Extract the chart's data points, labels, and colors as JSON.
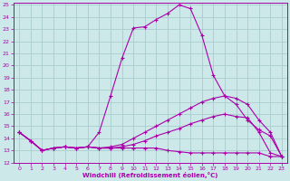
{
  "xlabel": "Windchill (Refroidissement éolien,°C)",
  "bg_color": "#cce8e8",
  "line_color": "#aa00aa",
  "grid_color": "#aacccc",
  "xlim": [
    -0.5,
    23.5
  ],
  "ylim": [
    12,
    25.2
  ],
  "xticks": [
    0,
    1,
    2,
    3,
    4,
    5,
    6,
    7,
    8,
    9,
    10,
    11,
    12,
    13,
    14,
    15,
    16,
    17,
    18,
    19,
    20,
    21,
    22,
    23
  ],
  "yticks": [
    12,
    13,
    14,
    15,
    16,
    17,
    18,
    19,
    20,
    21,
    22,
    23,
    24,
    25
  ],
  "line1_x": [
    0,
    1,
    2,
    3,
    4,
    5,
    6,
    7,
    8,
    9,
    10,
    11,
    12,
    13,
    14,
    15,
    16,
    17,
    18,
    19,
    20,
    21,
    22,
    23
  ],
  "line1_y": [
    14.5,
    13.8,
    13.0,
    13.2,
    13.3,
    13.2,
    13.3,
    14.5,
    17.5,
    20.6,
    23.1,
    23.2,
    23.8,
    24.3,
    25.0,
    24.7,
    22.5,
    19.2,
    17.5,
    16.8,
    15.5,
    14.7,
    14.2,
    12.5
  ],
  "line2_x": [
    0,
    1,
    2,
    3,
    4,
    5,
    6,
    7,
    8,
    9,
    10,
    11,
    12,
    13,
    14,
    15,
    16,
    17,
    18,
    19,
    20,
    21,
    22,
    23
  ],
  "line2_y": [
    14.5,
    13.8,
    13.0,
    13.2,
    13.3,
    13.2,
    13.3,
    13.2,
    13.3,
    13.5,
    14.0,
    14.5,
    15.0,
    15.5,
    16.0,
    16.5,
    17.0,
    17.3,
    17.5,
    17.3,
    16.8,
    15.5,
    14.5,
    12.5
  ],
  "line3_x": [
    0,
    1,
    2,
    3,
    4,
    5,
    6,
    7,
    8,
    9,
    10,
    11,
    12,
    13,
    14,
    15,
    16,
    17,
    18,
    19,
    20,
    21,
    22,
    23
  ],
  "line3_y": [
    14.5,
    13.8,
    13.0,
    13.2,
    13.3,
    13.2,
    13.3,
    13.2,
    13.2,
    13.3,
    13.5,
    13.8,
    14.2,
    14.5,
    14.8,
    15.2,
    15.5,
    15.8,
    16.0,
    15.8,
    15.7,
    14.5,
    12.8,
    12.5
  ],
  "line4_x": [
    0,
    1,
    2,
    3,
    4,
    5,
    6,
    7,
    8,
    9,
    10,
    11,
    12,
    13,
    14,
    15,
    16,
    17,
    18,
    19,
    20,
    21,
    22,
    23
  ],
  "line4_y": [
    14.5,
    13.8,
    13.0,
    13.2,
    13.3,
    13.2,
    13.3,
    13.2,
    13.2,
    13.2,
    13.2,
    13.2,
    13.2,
    13.0,
    12.9,
    12.8,
    12.8,
    12.8,
    12.8,
    12.8,
    12.8,
    12.8,
    12.5,
    12.5
  ]
}
